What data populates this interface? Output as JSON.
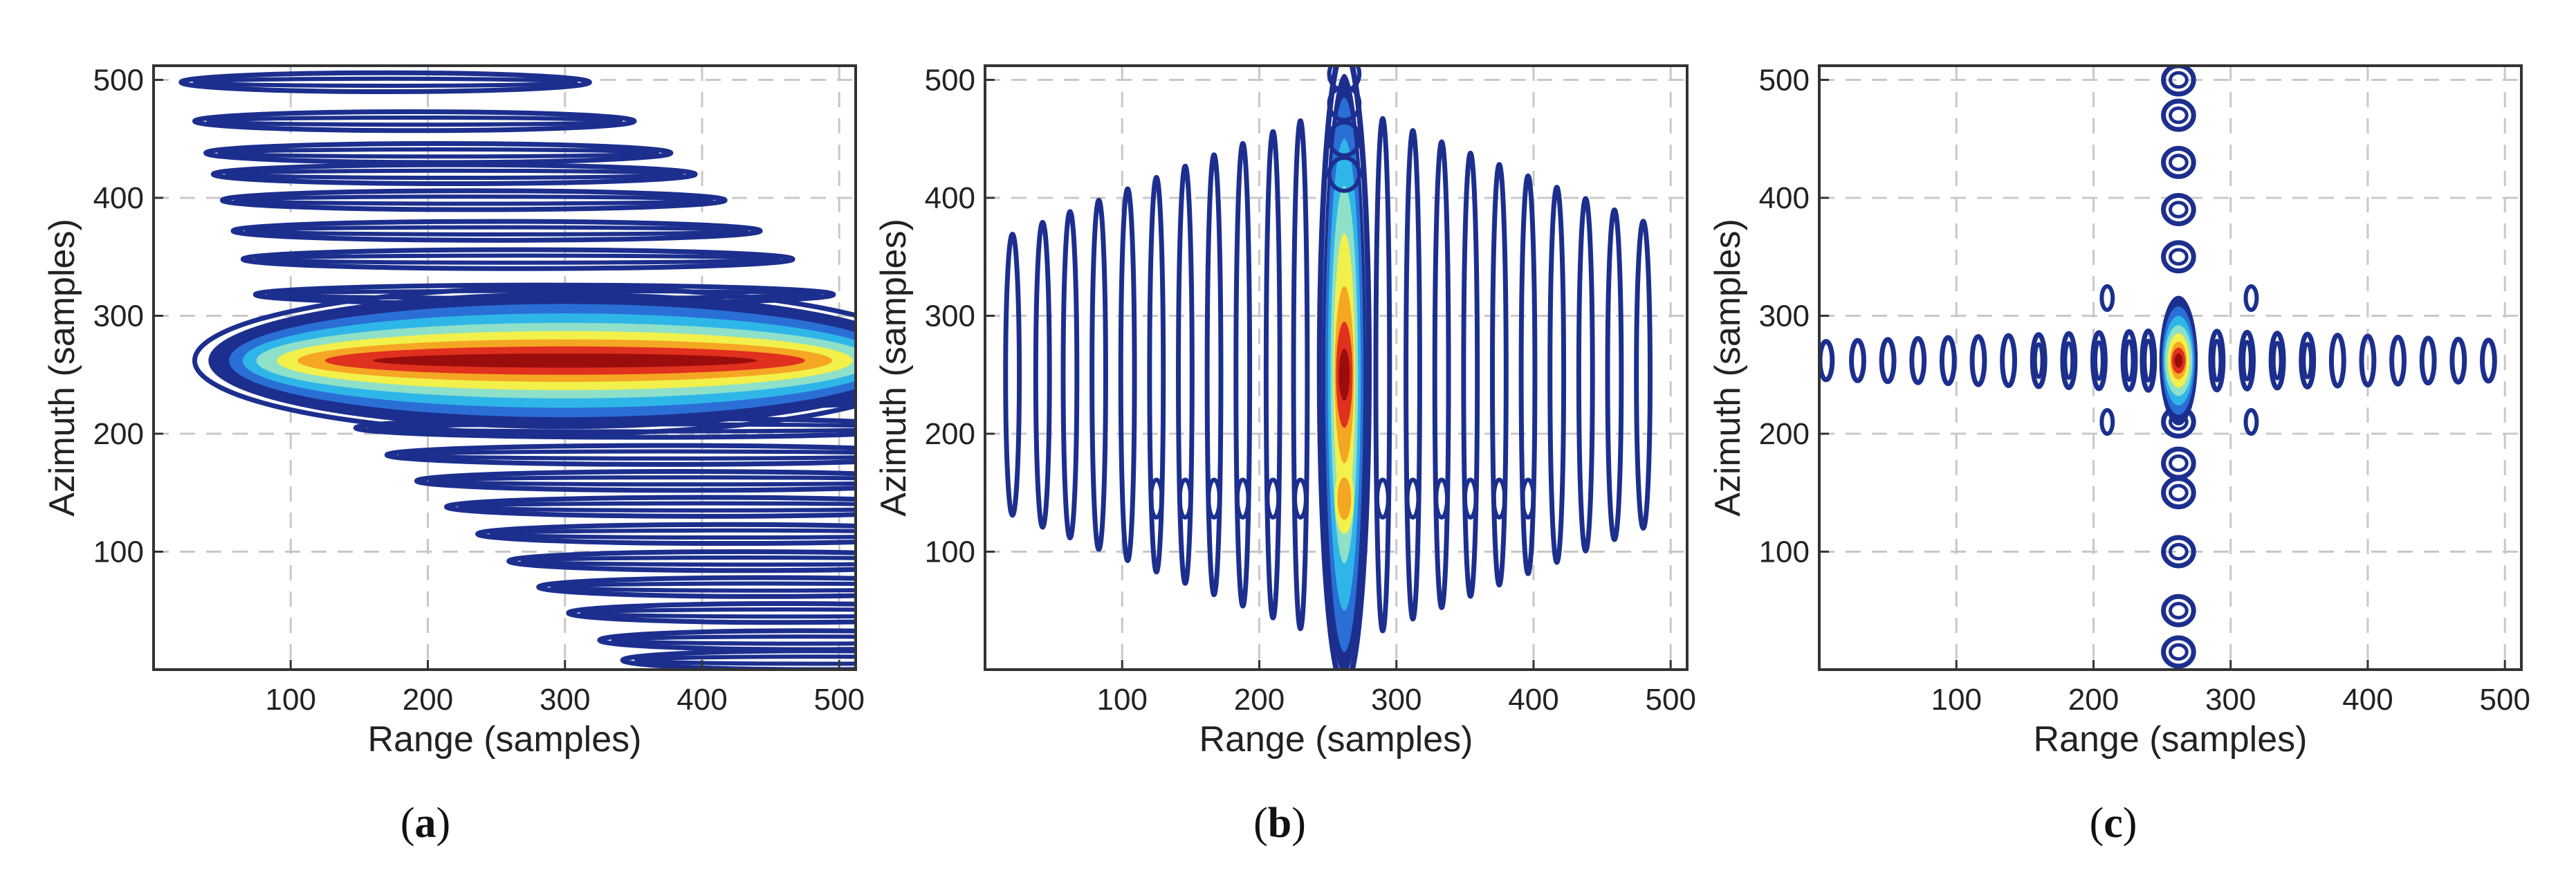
{
  "figure": {
    "caption_labels": [
      "(a)",
      "(b)",
      "(c)"
    ]
  },
  "chart_data": [
    {
      "type": "contour",
      "panel": "a",
      "panel_label": "(a)",
      "panel_letter": "a",
      "xlabel": "Range (samples)",
      "ylabel": "Azimuth (samples)",
      "xlim": [
        0,
        512
      ],
      "ylim": [
        0,
        512
      ],
      "xticks": [
        100,
        200,
        300,
        400,
        500
      ],
      "yticks": [
        100,
        200,
        300,
        400,
        500
      ],
      "grid": true,
      "colormap": [
        "#1c2f8e",
        "#2a6fd6",
        "#2fb6e8",
        "#8fe0c8",
        "#f2f04a",
        "#f5a623",
        "#e0301e",
        "#9b0d0d"
      ],
      "description_shape": "horizontally elongated, skewed response",
      "peak": {
        "range": 300,
        "azimuth": 262
      },
      "sidelobe_rows_azimuth": [
        498,
        465,
        438,
        420,
        398,
        372,
        348,
        318,
        290,
        230,
        205,
        182,
        160,
        138,
        115,
        92,
        70,
        48,
        25,
        8
      ]
    },
    {
      "type": "contour",
      "panel": "b",
      "panel_label": "(b)",
      "panel_letter": "b",
      "xlabel": "Range (samples)",
      "ylabel": "Azimuth (samples)",
      "xlim": [
        0,
        512
      ],
      "ylim": [
        0,
        512
      ],
      "xticks": [
        100,
        200,
        300,
        400,
        500
      ],
      "yticks": [
        100,
        200,
        300,
        400,
        500
      ],
      "grid": true,
      "colormap": [
        "#1c2f8e",
        "#2a6fd6",
        "#2fb6e8",
        "#8fe0c8",
        "#f2f04a",
        "#f5a623",
        "#e0301e",
        "#9b0d0d"
      ],
      "description_shape": "vertically elongated response",
      "peak": {
        "range": 262,
        "azimuth": 250
      },
      "sidelobe_columns_range": [
        20,
        42,
        62,
        83,
        104,
        125,
        146,
        167,
        188,
        210,
        230,
        290,
        312,
        333,
        354,
        375,
        396,
        417,
        438,
        459,
        480
      ]
    },
    {
      "type": "contour",
      "panel": "c",
      "panel_label": "(c)",
      "panel_letter": "c",
      "xlabel": "Range (samples)",
      "ylabel": "Azimuth (samples)",
      "xlim": [
        0,
        512
      ],
      "ylim": [
        0,
        512
      ],
      "xticks": [
        100,
        200,
        300,
        400,
        500
      ],
      "yticks": [
        100,
        200,
        300,
        400,
        500
      ],
      "grid": true,
      "colormap": [
        "#1c2f8e",
        "#2a6fd6",
        "#2fb6e8",
        "#8fe0c8",
        "#f2f04a",
        "#f5a623",
        "#e0301e",
        "#9b0d0d"
      ],
      "description_shape": "well-focused cross-shaped response",
      "peak": {
        "range": 262,
        "azimuth": 262
      },
      "sidelobe_columns_range": [
        5,
        28,
        50,
        72,
        94,
        116,
        138,
        160,
        182,
        204,
        226,
        240,
        290,
        312,
        334,
        356,
        378,
        400,
        422,
        444,
        466,
        488
      ],
      "sidelobe_rows_azimuth": [
        15,
        50,
        100,
        150,
        175,
        210,
        350,
        390,
        430,
        470,
        500
      ]
    }
  ]
}
